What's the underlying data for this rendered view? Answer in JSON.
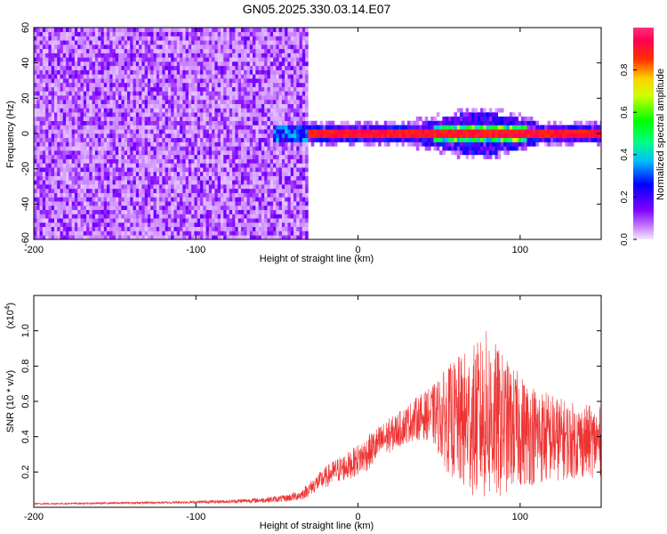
{
  "title": "GN05.2025.330.03.14.E07",
  "colors": {
    "snr_line": "#ee3333",
    "frame": "#000000"
  },
  "chart_data": [
    {
      "type": "heatmap",
      "xlabel": "Height of straight line (km)",
      "ylabel": "Frequency (Hz)",
      "xlim": [
        -200,
        150
      ],
      "ylim": [
        -60,
        60
      ],
      "x_ticks": [
        "-200",
        "-100",
        "0",
        "100"
      ],
      "y_ticks": [
        "-60",
        "-40",
        "-20",
        "0",
        "20",
        "40",
        "60"
      ],
      "colorbar": {
        "label": "Normalized spectral amplitude",
        "range": [
          0,
          1
        ],
        "ticks": [
          "0.0",
          "0.2",
          "0.4",
          "0.6",
          "0.8"
        ],
        "colormap": "rainbow (violet-blue-cyan-green-yellow-red-pink)"
      },
      "regions": [
        {
          "x_range": [
            -200,
            -30
          ],
          "f_range": [
            -60,
            60
          ],
          "amplitude": "~0.0-0.1 noise (violet)"
        },
        {
          "x_range": [
            -52,
            150
          ],
          "f_center": 0,
          "f_halfwidth": 4,
          "amplitude": "~0.8-0.95 (red/pink core)"
        },
        {
          "x_range": [
            40,
            120
          ],
          "f_range": [
            -8,
            10
          ],
          "amplitude": "~0.2-0.5 (cyan/green)"
        }
      ]
    },
    {
      "type": "line",
      "xlabel": "Height of straight line (km)",
      "ylabel": "SNR (10 * v/v)",
      "y_multiplier": "(x10",
      "y_multiplier_exp": "4",
      "xlim": [
        -200,
        150
      ],
      "ylim": [
        0,
        1.2
      ],
      "x_ticks": [
        "-200",
        "-100",
        "0",
        "100"
      ],
      "y_ticks": [
        "0.2",
        "0.4",
        "0.6",
        "0.8",
        "1.0"
      ],
      "series": [
        {
          "x": [
            -200,
            -170,
            -140,
            -110,
            -80,
            -60,
            -45,
            -35,
            -25,
            -15,
            -5,
            5,
            15,
            25,
            35,
            45,
            55,
            65,
            75,
            80,
            85,
            95,
            105,
            115,
            130,
            150
          ],
          "y": [
            0.02,
            0.022,
            0.025,
            0.028,
            0.033,
            0.04,
            0.05,
            0.07,
            0.14,
            0.2,
            0.24,
            0.3,
            0.38,
            0.44,
            0.5,
            0.53,
            0.5,
            0.48,
            0.5,
            0.52,
            0.48,
            0.45,
            0.42,
            0.4,
            0.38,
            0.37
          ],
          "y_spread": [
            0.004,
            0.005,
            0.006,
            0.007,
            0.01,
            0.015,
            0.02,
            0.03,
            0.05,
            0.07,
            0.08,
            0.1,
            0.1,
            0.1,
            0.12,
            0.15,
            0.3,
            0.4,
            0.45,
            0.5,
            0.45,
            0.35,
            0.3,
            0.27,
            0.22,
            0.2
          ]
        }
      ]
    }
  ]
}
